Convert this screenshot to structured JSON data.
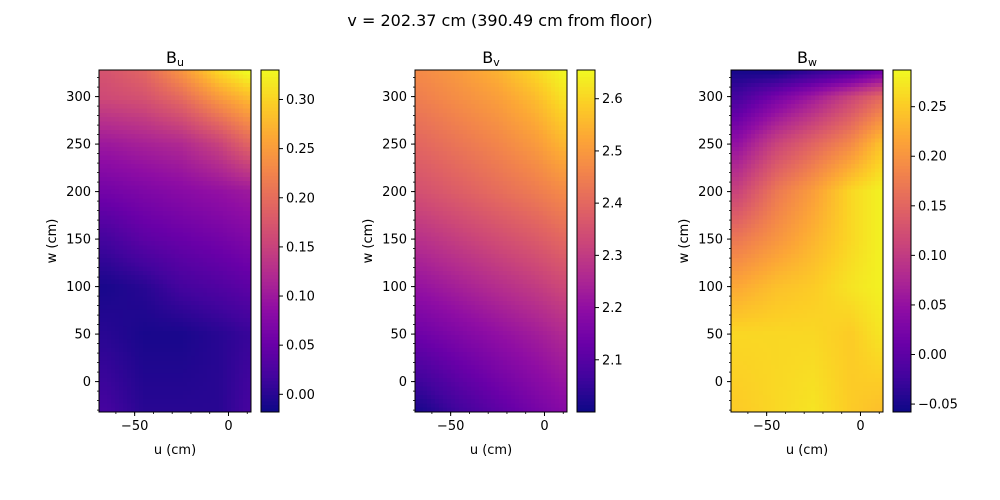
{
  "figure": {
    "title": "v = 202.37 cm (390.49 cm from floor)"
  },
  "chart_data": [
    {
      "type": "heatmap",
      "title": "Bu",
      "title_main": "B",
      "title_sub": "u",
      "xlabel": "u (cm)",
      "ylabel": "w (cm)",
      "xlim": [
        -69,
        12
      ],
      "ylim": [
        -32,
        328
      ],
      "x_ticks": [
        -50,
        0
      ],
      "y_ticks": [
        0,
        50,
        100,
        150,
        200,
        250,
        300
      ],
      "colormap": "plasma",
      "colorbar": {
        "min": -0.018,
        "max": 0.33,
        "ticks": [
          "0.00",
          "0.05",
          "0.10",
          "0.15",
          "0.20",
          "0.25",
          "0.30"
        ]
      },
      "field_samples": {
        "x": [
          -65,
          -45,
          -25,
          -5,
          10
        ],
        "y": [
          -30,
          50,
          100,
          150,
          200,
          250,
          300,
          325
        ],
        "values": [
          [
            0.02,
            0.0,
            0.0,
            0.0,
            0.02
          ],
          [
            0.0,
            -0.01,
            -0.01,
            0.0,
            0.01
          ],
          [
            -0.01,
            0.0,
            0.02,
            0.03,
            0.04
          ],
          [
            0.02,
            0.04,
            0.05,
            0.06,
            0.07
          ],
          [
            0.06,
            0.07,
            0.08,
            0.09,
            0.1
          ],
          [
            0.1,
            0.11,
            0.12,
            0.15,
            0.19
          ],
          [
            0.16,
            0.17,
            0.2,
            0.25,
            0.28
          ],
          [
            0.17,
            0.19,
            0.24,
            0.3,
            0.33
          ]
        ]
      }
    },
    {
      "type": "heatmap",
      "title": "Bv",
      "title_main": "B",
      "title_sub": "v",
      "xlabel": "u (cm)",
      "ylabel": "w (cm)",
      "xlim": [
        -69,
        12
      ],
      "ylim": [
        -32,
        328
      ],
      "x_ticks": [
        -50,
        0
      ],
      "y_ticks": [
        0,
        50,
        100,
        150,
        200,
        250,
        300
      ],
      "colormap": "plasma",
      "colorbar": {
        "min": 2.0,
        "max": 2.655,
        "ticks": [
          "2.1",
          "2.2",
          "2.3",
          "2.4",
          "2.5",
          "2.6"
        ]
      },
      "field_samples": {
        "x": [
          -65,
          -45,
          -25,
          -5,
          10
        ],
        "y": [
          -30,
          50,
          100,
          150,
          200,
          250,
          300,
          325
        ],
        "values": [
          [
            2.02,
            2.07,
            2.11,
            2.15,
            2.18
          ],
          [
            2.14,
            2.17,
            2.2,
            2.23,
            2.26
          ],
          [
            2.21,
            2.24,
            2.27,
            2.3,
            2.33
          ],
          [
            2.28,
            2.31,
            2.34,
            2.37,
            2.4
          ],
          [
            2.35,
            2.38,
            2.41,
            2.44,
            2.47
          ],
          [
            2.4,
            2.43,
            2.46,
            2.5,
            2.55
          ],
          [
            2.45,
            2.48,
            2.51,
            2.56,
            2.62
          ],
          [
            2.47,
            2.5,
            2.54,
            2.6,
            2.65
          ]
        ]
      }
    },
    {
      "type": "heatmap",
      "title": "Bw",
      "title_main": "B",
      "title_sub": "w",
      "xlabel": "u (cm)",
      "ylabel": "w (cm)",
      "xlim": [
        -69,
        12
      ],
      "ylim": [
        -32,
        328
      ],
      "x_ticks": [
        -50,
        0
      ],
      "y_ticks": [
        0,
        50,
        100,
        150,
        200,
        250,
        300
      ],
      "colormap": "plasma",
      "colorbar": {
        "min": -0.058,
        "max": 0.287,
        "ticks": [
          "−0.05",
          "0.00",
          "0.05",
          "0.10",
          "0.15",
          "0.20",
          "0.25"
        ]
      },
      "field_samples": {
        "x": [
          -65,
          -45,
          -25,
          -5,
          10
        ],
        "y": [
          -30,
          50,
          100,
          150,
          200,
          250,
          300,
          325
        ],
        "values": [
          [
            0.25,
            0.26,
            0.27,
            0.25,
            0.24
          ],
          [
            0.26,
            0.26,
            0.26,
            0.25,
            0.27
          ],
          [
            0.22,
            0.24,
            0.25,
            0.27,
            0.28
          ],
          [
            0.17,
            0.2,
            0.23,
            0.26,
            0.28
          ],
          [
            0.11,
            0.17,
            0.21,
            0.26,
            0.28
          ],
          [
            0.05,
            0.11,
            0.15,
            0.19,
            0.24
          ],
          [
            -0.02,
            0.02,
            0.06,
            0.11,
            0.15
          ],
          [
            -0.05,
            -0.05,
            -0.03,
            -0.01,
            0.02
          ]
        ]
      }
    }
  ]
}
